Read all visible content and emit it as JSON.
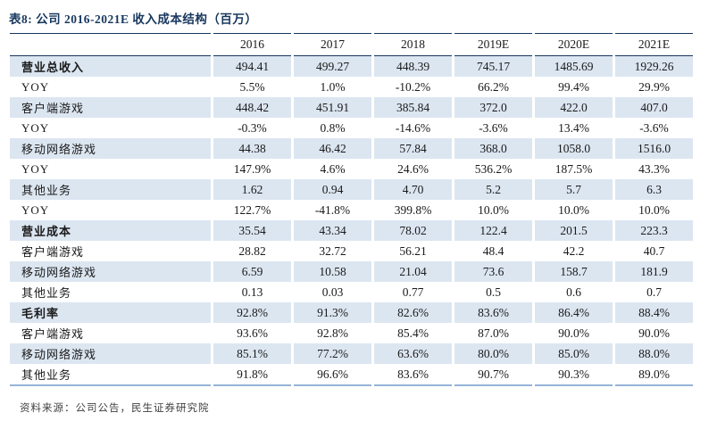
{
  "title": "表8: 公司 2016-2021E 收入成本结构（百万）",
  "footer": "资料来源：公司公告，民生证券研究院",
  "colors": {
    "title_navy": "#17375E",
    "header_border": "#17375E",
    "row_stripe": "#DCE6F1",
    "bottom_border": "#95B3D7"
  },
  "table": {
    "columns": [
      "",
      "2016",
      "2017",
      "2018",
      "2019E",
      "2020E",
      "2021E"
    ],
    "rows": [
      {
        "label": "营业总收入",
        "bold": true,
        "values": [
          "494.41",
          "499.27",
          "448.39",
          "745.17",
          "1485.69",
          "1929.26"
        ]
      },
      {
        "label": "YOY",
        "bold": false,
        "values": [
          "5.5%",
          "1.0%",
          "-10.2%",
          "66.2%",
          "99.4%",
          "29.9%"
        ]
      },
      {
        "label": "客户端游戏",
        "bold": false,
        "values": [
          "448.42",
          "451.91",
          "385.84",
          "372.0",
          "422.0",
          "407.0"
        ]
      },
      {
        "label": "YOY",
        "bold": false,
        "values": [
          "-0.3%",
          "0.8%",
          "-14.6%",
          "-3.6%",
          "13.4%",
          "-3.6%"
        ]
      },
      {
        "label": "移动网络游戏",
        "bold": false,
        "values": [
          "44.38",
          "46.42",
          "57.84",
          "368.0",
          "1058.0",
          "1516.0"
        ]
      },
      {
        "label": "YOY",
        "bold": false,
        "values": [
          "147.9%",
          "4.6%",
          "24.6%",
          "536.2%",
          "187.5%",
          "43.3%"
        ]
      },
      {
        "label": "其他业务",
        "bold": false,
        "values": [
          "1.62",
          "0.94",
          "4.70",
          "5.2",
          "5.7",
          "6.3"
        ]
      },
      {
        "label": "YOY",
        "bold": false,
        "values": [
          "122.7%",
          "-41.8%",
          "399.8%",
          "10.0%",
          "10.0%",
          "10.0%"
        ]
      },
      {
        "label": "营业成本",
        "bold": true,
        "values": [
          "35.54",
          "43.34",
          "78.02",
          "122.4",
          "201.5",
          "223.3"
        ]
      },
      {
        "label": "客户端游戏",
        "bold": false,
        "values": [
          "28.82",
          "32.72",
          "56.21",
          "48.4",
          "42.2",
          "40.7"
        ]
      },
      {
        "label": "移动网络游戏",
        "bold": false,
        "values": [
          "6.59",
          "10.58",
          "21.04",
          "73.6",
          "158.7",
          "181.9"
        ]
      },
      {
        "label": "其他业务",
        "bold": false,
        "values": [
          "0.13",
          "0.03",
          "0.77",
          "0.5",
          "0.6",
          "0.7"
        ]
      },
      {
        "label": "毛利率",
        "bold": true,
        "values": [
          "92.8%",
          "91.3%",
          "82.6%",
          "83.6%",
          "86.4%",
          "88.4%"
        ]
      },
      {
        "label": "客户端游戏",
        "bold": false,
        "values": [
          "93.6%",
          "92.8%",
          "85.4%",
          "87.0%",
          "90.0%",
          "90.0%"
        ]
      },
      {
        "label": "移动网络游戏",
        "bold": false,
        "values": [
          "85.1%",
          "77.2%",
          "63.6%",
          "80.0%",
          "85.0%",
          "88.0%"
        ]
      },
      {
        "label": "其他业务",
        "bold": false,
        "values": [
          "91.8%",
          "96.6%",
          "83.6%",
          "90.7%",
          "90.3%",
          "89.0%"
        ]
      }
    ]
  }
}
